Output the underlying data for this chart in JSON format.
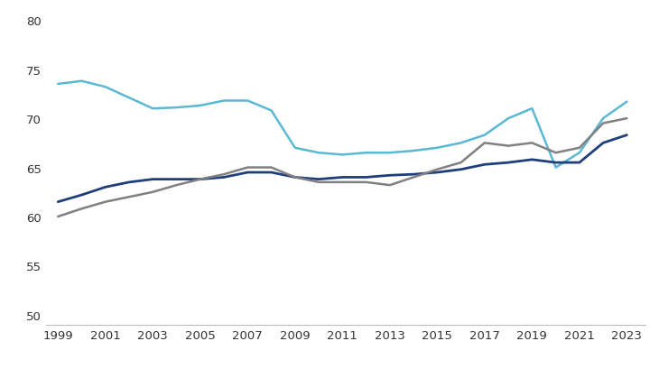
{
  "years": [
    1999,
    2000,
    2001,
    2002,
    2003,
    2004,
    2005,
    2006,
    2007,
    2008,
    2009,
    2010,
    2011,
    2012,
    2013,
    2014,
    2015,
    2016,
    2017,
    2018,
    2019,
    2020,
    2021,
    2022,
    2023
  ],
  "usa": [
    73.5,
    73.8,
    73.2,
    72.1,
    71.0,
    71.1,
    71.3,
    71.8,
    71.8,
    70.8,
    67.0,
    66.5,
    66.3,
    66.5,
    66.5,
    66.7,
    67.0,
    67.5,
    68.3,
    70.0,
    71.0,
    65.0,
    66.5,
    70.0,
    71.7
  ],
  "france": [
    61.5,
    62.2,
    63.0,
    63.5,
    63.8,
    63.8,
    63.8,
    64.0,
    64.5,
    64.5,
    64.0,
    63.8,
    64.0,
    64.0,
    64.2,
    64.3,
    64.5,
    64.8,
    65.3,
    65.5,
    65.8,
    65.5,
    65.5,
    67.5,
    68.3
  ],
  "euro_zone": [
    60.0,
    60.8,
    61.5,
    62.0,
    62.5,
    63.2,
    63.8,
    64.3,
    65.0,
    65.0,
    64.0,
    63.5,
    63.5,
    63.5,
    63.2,
    64.0,
    64.8,
    65.5,
    67.5,
    67.2,
    67.5,
    66.5,
    67.0,
    69.5,
    70.0
  ],
  "colors": {
    "usa": "#5BB8D4",
    "france": "#1F3F7A",
    "euro_zone": "#808080"
  },
  "linewidths": {
    "usa": 1.8,
    "france": 2.0,
    "euro_zone": 1.8
  },
  "ylim": [
    49,
    81
  ],
  "yticks": [
    50,
    55,
    60,
    65,
    70,
    75,
    80
  ],
  "xlim": [
    1998.5,
    2023.8
  ],
  "xticks": [
    1999,
    2001,
    2003,
    2005,
    2007,
    2009,
    2011,
    2013,
    2015,
    2017,
    2019,
    2021,
    2023
  ],
  "background_color": "#ffffff",
  "tick_color": "#333333",
  "tick_fontsize": 9.5,
  "spine_color": "#bbbbbb"
}
